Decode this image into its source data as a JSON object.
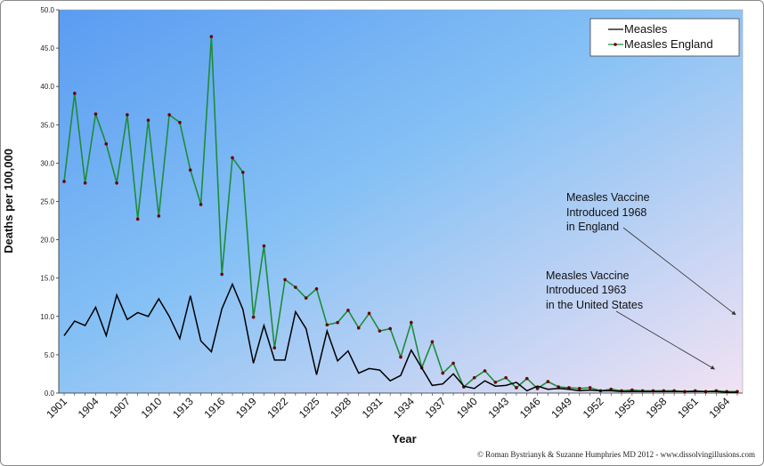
{
  "chart_data": {
    "type": "line",
    "title": "",
    "xlabel": "Year",
    "ylabel": "Deaths per 100,000",
    "ylim": [
      0,
      50
    ],
    "y_ticks": [
      "0.0",
      "5.0",
      "10.0",
      "15.0",
      "20.0",
      "25.0",
      "30.0",
      "35.0",
      "40.0",
      "45.0",
      "50.0"
    ],
    "x_range": [
      1901,
      1965
    ],
    "x_tick_labels": [
      "1901",
      "1904",
      "1907",
      "1910",
      "1913",
      "1916",
      "1919",
      "1922",
      "1925",
      "1928",
      "1931",
      "1934",
      "1937",
      "1940",
      "1943",
      "1946",
      "1949",
      "1952",
      "1955",
      "1958",
      "1961",
      "1964"
    ],
    "grid": false,
    "legend_position": "top-right",
    "series": [
      {
        "name": "Measles",
        "color": "#000000",
        "marker": "none",
        "x": [
          1901,
          1902,
          1903,
          1904,
          1905,
          1906,
          1907,
          1908,
          1909,
          1910,
          1911,
          1912,
          1913,
          1914,
          1915,
          1916,
          1917,
          1918,
          1919,
          1920,
          1921,
          1922,
          1923,
          1924,
          1925,
          1926,
          1927,
          1928,
          1929,
          1930,
          1931,
          1932,
          1933,
          1934,
          1935,
          1936,
          1937,
          1938,
          1939,
          1940,
          1941,
          1942,
          1943,
          1944,
          1945,
          1946,
          1947,
          1948,
          1949,
          1950,
          1951,
          1952,
          1953,
          1954,
          1955,
          1956,
          1957,
          1958,
          1959,
          1960,
          1961,
          1962,
          1963,
          1964,
          1965
        ],
        "y": [
          7.5,
          9.4,
          8.8,
          11.2,
          7.5,
          12.8,
          9.6,
          10.5,
          10.0,
          12.3,
          10.0,
          7.1,
          12.7,
          6.8,
          5.4,
          11.0,
          14.2,
          10.9,
          3.9,
          8.8,
          4.3,
          4.3,
          10.6,
          8.4,
          2.4,
          8.1,
          4.2,
          5.5,
          2.6,
          3.2,
          3.0,
          1.6,
          2.3,
          5.6,
          3.3,
          1.0,
          1.2,
          2.5,
          0.9,
          0.6,
          1.6,
          0.9,
          1.0,
          1.4,
          0.3,
          0.9,
          0.5,
          0.6,
          0.5,
          0.3,
          0.4,
          0.3,
          0.3,
          0.2,
          0.2,
          0.2,
          0.2,
          0.2,
          0.2,
          0.2,
          0.2,
          0.2,
          0.2,
          0.1,
          0.1
        ]
      },
      {
        "name": "Measles England",
        "color": "#1e8c3a",
        "marker_color": "#6b0000",
        "marker": "dot",
        "x": [
          1901,
          1902,
          1903,
          1904,
          1905,
          1906,
          1907,
          1908,
          1909,
          1910,
          1911,
          1912,
          1913,
          1914,
          1915,
          1916,
          1917,
          1918,
          1919,
          1920,
          1921,
          1922,
          1923,
          1924,
          1925,
          1926,
          1927,
          1928,
          1929,
          1930,
          1931,
          1932,
          1933,
          1934,
          1935,
          1936,
          1937,
          1938,
          1939,
          1940,
          1941,
          1942,
          1943,
          1944,
          1945,
          1946,
          1947,
          1948,
          1949,
          1950,
          1951,
          1952,
          1953,
          1954,
          1955,
          1956,
          1957,
          1958,
          1959,
          1960,
          1961,
          1962,
          1963,
          1964,
          1965
        ],
        "y": [
          27.6,
          39.1,
          27.4,
          36.4,
          32.5,
          27.4,
          36.3,
          22.7,
          35.6,
          23.1,
          36.3,
          35.3,
          29.1,
          24.6,
          46.5,
          15.5,
          30.7,
          28.8,
          9.9,
          19.2,
          5.9,
          14.8,
          13.8,
          12.4,
          13.6,
          8.9,
          9.2,
          10.8,
          8.5,
          10.4,
          8.1,
          8.4,
          4.7,
          9.2,
          3.3,
          6.7,
          2.6,
          3.9,
          0.8,
          2.0,
          2.9,
          1.4,
          2.0,
          0.7,
          1.9,
          0.6,
          1.5,
          0.8,
          0.7,
          0.6,
          0.7,
          0.3,
          0.5,
          0.3,
          0.4,
          0.3,
          0.3,
          0.3,
          0.3,
          0.2,
          0.3,
          0.2,
          0.3,
          0.2,
          0.2
        ]
      }
    ],
    "annotations": [
      {
        "lines": [
          "Measles Vaccine",
          "Introduced 1968",
          "in England"
        ],
        "arrow_to": [
          1965,
          10.0
        ]
      },
      {
        "lines": [
          "Measles Vaccine",
          "Introduced 1963",
          "in the United States"
        ],
        "arrow_to": [
          1963,
          2.9
        ]
      }
    ],
    "credit": "© Roman Bystrianyk & Suzanne Humphries MD 2012 - www.dissolvingillusions.com"
  },
  "colors": {
    "plot_gradient_start": "#5a9cf2",
    "plot_gradient_mid": "#86c1f5",
    "plot_gradient_end": "#f2e2f3"
  }
}
